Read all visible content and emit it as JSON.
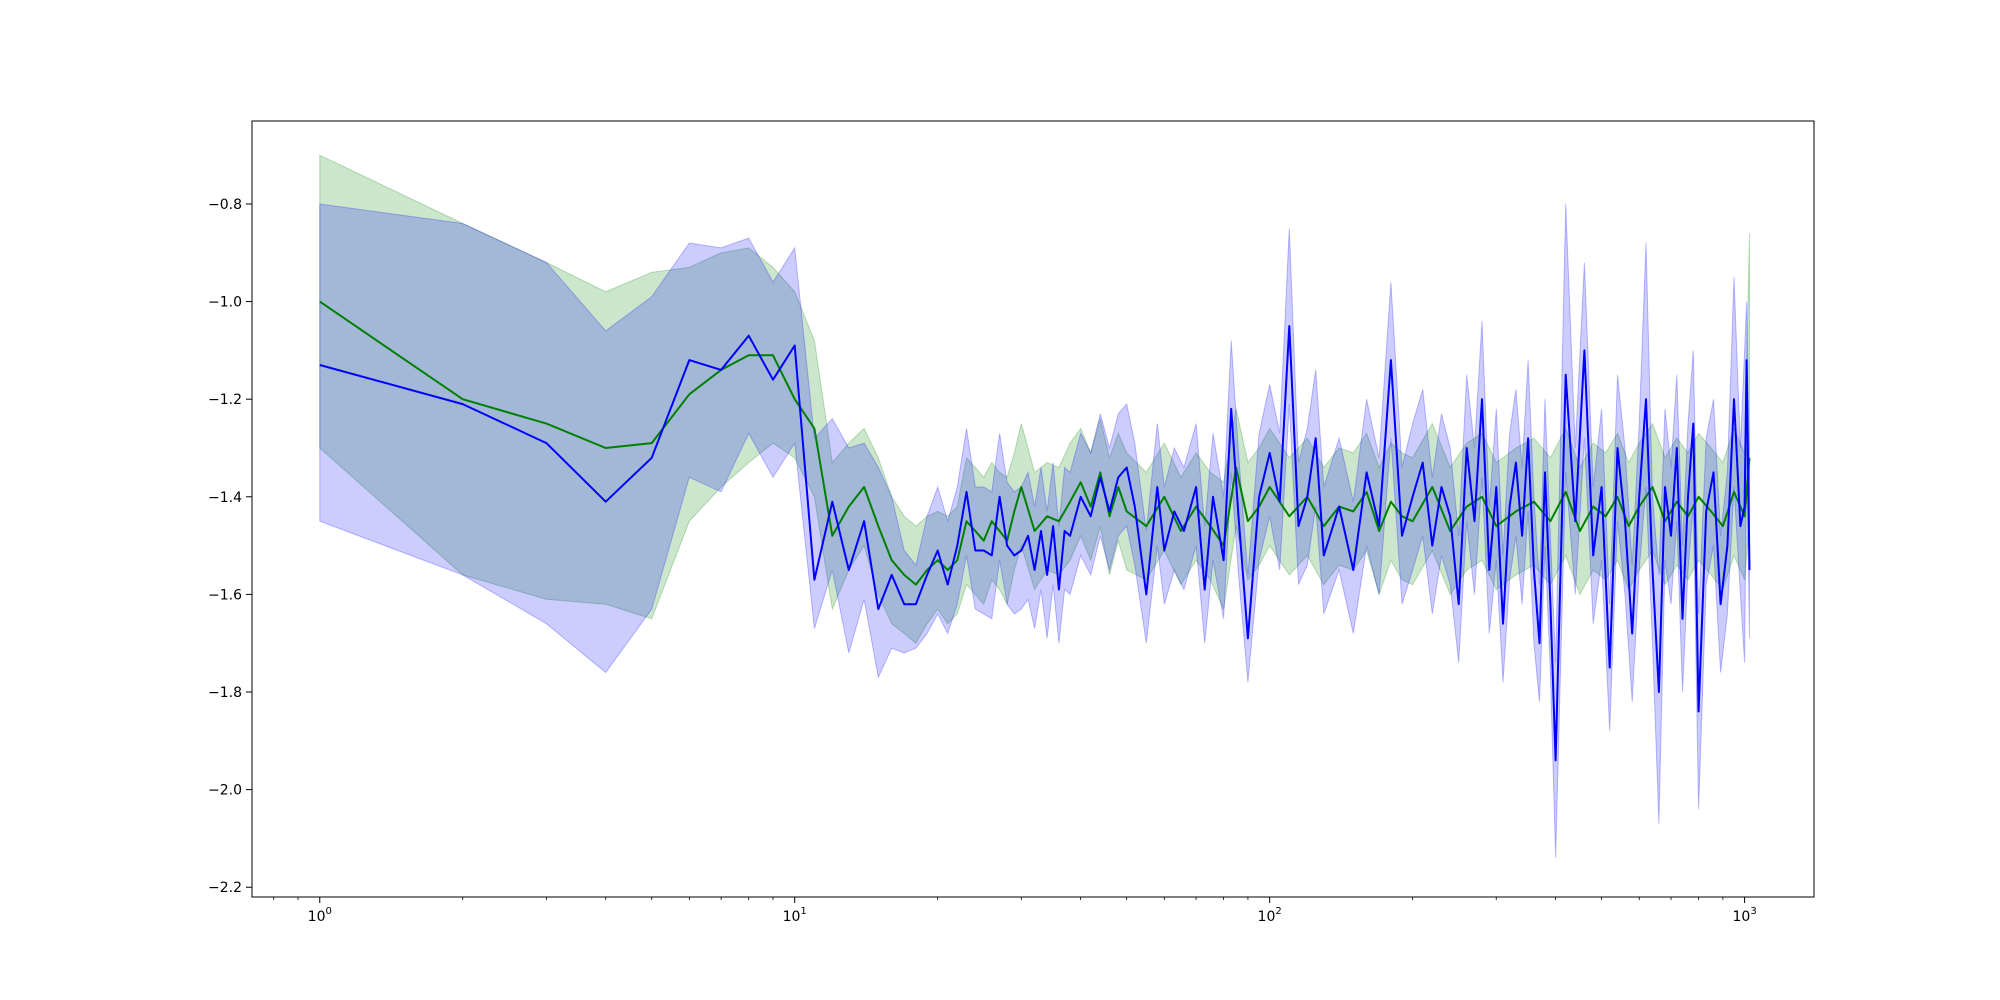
{
  "chart_data": {
    "type": "line",
    "title": "",
    "xlabel": "",
    "ylabel": "",
    "xscale": "log",
    "xlim": [
      0.72,
      1400
    ],
    "ylim": [
      -2.22,
      -0.63
    ],
    "grid": false,
    "legend": "none",
    "x_ticks": [
      {
        "base": "10",
        "exp": "0",
        "value": 1
      },
      {
        "base": "10",
        "exp": "1",
        "value": 10
      },
      {
        "base": "10",
        "exp": "2",
        "value": 100
      },
      {
        "base": "10",
        "exp": "3",
        "value": 1000
      }
    ],
    "y_ticks": [
      {
        "label": "−0.8",
        "value": -0.8
      },
      {
        "label": "−1.0",
        "value": -1.0
      },
      {
        "label": "−1.2",
        "value": -1.2
      },
      {
        "label": "−1.4",
        "value": -1.4
      },
      {
        "label": "−1.6",
        "value": -1.6
      },
      {
        "label": "−1.8",
        "value": -1.8
      },
      {
        "label": "−2.0",
        "value": -2.0
      },
      {
        "label": "−2.2",
        "value": -2.2
      }
    ],
    "series": [
      {
        "color": "#008000",
        "band_color": "#008000",
        "x": [
          1,
          2,
          3,
          4,
          5,
          6,
          7,
          8,
          9,
          10,
          11,
          12,
          13,
          14,
          15,
          16,
          17,
          18,
          19,
          20,
          21,
          22,
          23,
          24,
          25,
          26,
          27,
          28,
          29,
          30,
          32,
          34,
          36,
          38,
          40,
          42,
          44,
          46,
          48,
          50,
          55,
          60,
          65,
          70,
          75,
          80,
          85,
          90,
          95,
          100,
          110,
          120,
          130,
          140,
          150,
          160,
          170,
          180,
          190,
          200,
          220,
          240,
          260,
          280,
          300,
          330,
          360,
          390,
          420,
          450,
          480,
          510,
          540,
          570,
          600,
          640,
          680,
          720,
          760,
          800,
          850,
          900,
          950,
          1000,
          1024
        ],
        "y": [
          -1.0,
          -1.2,
          -1.25,
          -1.3,
          -1.29,
          -1.19,
          -1.14,
          -1.11,
          -1.11,
          -1.2,
          -1.26,
          -1.48,
          -1.42,
          -1.38,
          -1.46,
          -1.53,
          -1.56,
          -1.58,
          -1.55,
          -1.53,
          -1.55,
          -1.53,
          -1.45,
          -1.47,
          -1.49,
          -1.45,
          -1.47,
          -1.49,
          -1.43,
          -1.38,
          -1.47,
          -1.44,
          -1.45,
          -1.41,
          -1.37,
          -1.42,
          -1.35,
          -1.44,
          -1.38,
          -1.43,
          -1.46,
          -1.4,
          -1.47,
          -1.42,
          -1.46,
          -1.5,
          -1.34,
          -1.45,
          -1.42,
          -1.38,
          -1.44,
          -1.4,
          -1.46,
          -1.42,
          -1.43,
          -1.39,
          -1.47,
          -1.41,
          -1.44,
          -1.45,
          -1.38,
          -1.47,
          -1.42,
          -1.4,
          -1.46,
          -1.43,
          -1.41,
          -1.45,
          -1.39,
          -1.47,
          -1.42,
          -1.44,
          -1.4,
          -1.46,
          -1.42,
          -1.38,
          -1.45,
          -1.41,
          -1.44,
          -1.4,
          -1.43,
          -1.46,
          -1.39,
          -1.44,
          -1.32
        ],
        "lower": [
          -1.3,
          -1.56,
          -1.61,
          -1.62,
          -1.65,
          -1.45,
          -1.38,
          -1.33,
          -1.29,
          -1.32,
          -1.4,
          -1.63,
          -1.55,
          -1.5,
          -1.6,
          -1.66,
          -1.68,
          -1.7,
          -1.66,
          -1.63,
          -1.66,
          -1.64,
          -1.58,
          -1.6,
          -1.62,
          -1.57,
          -1.59,
          -1.62,
          -1.55,
          -1.5,
          -1.59,
          -1.55,
          -1.56,
          -1.53,
          -1.48,
          -1.53,
          -1.46,
          -1.56,
          -1.49,
          -1.55,
          -1.57,
          -1.51,
          -1.58,
          -1.53,
          -1.57,
          -1.63,
          -1.46,
          -1.57,
          -1.54,
          -1.5,
          -1.56,
          -1.52,
          -1.58,
          -1.54,
          -1.55,
          -1.51,
          -1.6,
          -1.53,
          -1.57,
          -1.58,
          -1.51,
          -1.6,
          -1.55,
          -1.53,
          -1.59,
          -1.56,
          -1.54,
          -1.58,
          -1.52,
          -1.6,
          -1.55,
          -1.57,
          -1.53,
          -1.59,
          -1.55,
          -1.51,
          -1.58,
          -1.54,
          -1.57,
          -1.53,
          -1.56,
          -1.59,
          -1.52,
          -1.57,
          -1.45
        ],
        "upper": [
          -0.7,
          -0.84,
          -0.92,
          -0.98,
          -0.94,
          -0.93,
          -0.9,
          -0.89,
          -0.93,
          -0.98,
          -1.08,
          -1.33,
          -1.29,
          -1.26,
          -1.32,
          -1.4,
          -1.44,
          -1.46,
          -1.44,
          -1.43,
          -1.44,
          -1.42,
          -1.32,
          -1.34,
          -1.36,
          -1.33,
          -1.35,
          -1.36,
          -1.31,
          -1.25,
          -1.35,
          -1.33,
          -1.34,
          -1.29,
          -1.26,
          -1.31,
          -1.24,
          -1.32,
          -1.27,
          -1.31,
          -1.35,
          -1.29,
          -1.36,
          -1.31,
          -1.35,
          -1.37,
          -1.22,
          -1.33,
          -1.3,
          -1.26,
          -1.32,
          -1.28,
          -1.34,
          -1.3,
          -1.31,
          -1.27,
          -1.34,
          -1.29,
          -1.31,
          -1.32,
          -1.25,
          -1.34,
          -1.29,
          -1.27,
          -1.33,
          -1.3,
          -1.28,
          -1.32,
          -1.26,
          -1.34,
          -1.29,
          -1.31,
          -1.27,
          -1.33,
          -1.29,
          -1.25,
          -1.32,
          -1.28,
          -1.31,
          -1.27,
          -1.3,
          -1.33,
          -1.26,
          -1.31,
          -0.86
        ]
      },
      {
        "color": "#0000ff",
        "band_color": "#0000ff",
        "x": [
          1,
          2,
          3,
          4,
          5,
          6,
          7,
          8,
          9,
          10,
          11,
          12,
          13,
          14,
          15,
          16,
          17,
          18,
          19,
          20,
          21,
          22,
          23,
          24,
          25,
          26,
          27,
          28,
          29,
          30,
          31,
          32,
          33,
          34,
          35,
          36,
          37,
          38,
          40,
          42,
          44,
          46,
          48,
          50,
          52,
          55,
          58,
          60,
          63,
          66,
          70,
          73,
          76,
          80,
          83,
          86,
          90,
          95,
          100,
          105,
          110,
          115,
          120,
          125,
          130,
          140,
          150,
          160,
          170,
          180,
          190,
          200,
          210,
          220,
          230,
          240,
          250,
          260,
          270,
          280,
          290,
          300,
          310,
          320,
          330,
          340,
          350,
          360,
          370,
          380,
          390,
          400,
          420,
          440,
          460,
          480,
          500,
          520,
          540,
          560,
          580,
          600,
          620,
          640,
          660,
          680,
          700,
          720,
          740,
          760,
          780,
          800,
          830,
          860,
          890,
          920,
          950,
          980,
          1000,
          1010,
          1024
        ],
        "y": [
          -1.13,
          -1.21,
          -1.29,
          -1.41,
          -1.32,
          -1.12,
          -1.14,
          -1.07,
          -1.16,
          -1.09,
          -1.57,
          -1.41,
          -1.55,
          -1.45,
          -1.63,
          -1.56,
          -1.62,
          -1.62,
          -1.56,
          -1.51,
          -1.58,
          -1.5,
          -1.39,
          -1.51,
          -1.51,
          -1.52,
          -1.4,
          -1.5,
          -1.52,
          -1.51,
          -1.48,
          -1.55,
          -1.47,
          -1.56,
          -1.46,
          -1.59,
          -1.47,
          -1.48,
          -1.4,
          -1.44,
          -1.36,
          -1.43,
          -1.36,
          -1.34,
          -1.42,
          -1.6,
          -1.38,
          -1.51,
          -1.43,
          -1.47,
          -1.38,
          -1.59,
          -1.4,
          -1.53,
          -1.22,
          -1.44,
          -1.69,
          -1.4,
          -1.31,
          -1.41,
          -1.05,
          -1.46,
          -1.4,
          -1.28,
          -1.52,
          -1.42,
          -1.55,
          -1.35,
          -1.46,
          -1.12,
          -1.48,
          -1.4,
          -1.33,
          -1.5,
          -1.38,
          -1.44,
          -1.62,
          -1.3,
          -1.45,
          -1.2,
          -1.55,
          -1.38,
          -1.66,
          -1.42,
          -1.33,
          -1.48,
          -1.28,
          -1.55,
          -1.7,
          -1.35,
          -1.62,
          -1.94,
          -1.15,
          -1.45,
          -1.1,
          -1.52,
          -1.38,
          -1.75,
          -1.3,
          -1.45,
          -1.68,
          -1.4,
          -1.2,
          -1.55,
          -1.8,
          -1.38,
          -1.48,
          -1.3,
          -1.65,
          -1.4,
          -1.25,
          -1.84,
          -1.43,
          -1.35,
          -1.62,
          -1.5,
          -1.2,
          -1.46,
          -1.42,
          -1.12,
          -1.55
        ],
        "lower": [
          -1.45,
          -1.56,
          -1.66,
          -1.76,
          -1.63,
          -1.36,
          -1.39,
          -1.27,
          -1.36,
          -1.29,
          -1.67,
          -1.55,
          -1.72,
          -1.61,
          -1.77,
          -1.71,
          -1.72,
          -1.71,
          -1.68,
          -1.64,
          -1.68,
          -1.62,
          -1.52,
          -1.63,
          -1.64,
          -1.65,
          -1.53,
          -1.62,
          -1.64,
          -1.63,
          -1.61,
          -1.67,
          -1.59,
          -1.69,
          -1.58,
          -1.7,
          -1.59,
          -1.6,
          -1.52,
          -1.56,
          -1.48,
          -1.55,
          -1.48,
          -1.46,
          -1.54,
          -1.7,
          -1.5,
          -1.62,
          -1.55,
          -1.59,
          -1.5,
          -1.7,
          -1.53,
          -1.65,
          -1.35,
          -1.56,
          -1.78,
          -1.53,
          -1.44,
          -1.55,
          -1.21,
          -1.58,
          -1.54,
          -1.42,
          -1.64,
          -1.55,
          -1.68,
          -1.5,
          -1.6,
          -1.28,
          -1.62,
          -1.55,
          -1.48,
          -1.64,
          -1.52,
          -1.58,
          -1.74,
          -1.45,
          -1.6,
          -1.36,
          -1.68,
          -1.53,
          -1.78,
          -1.57,
          -1.48,
          -1.62,
          -1.43,
          -1.7,
          -1.82,
          -1.5,
          -1.76,
          -2.14,
          -1.35,
          -1.6,
          -1.28,
          -1.66,
          -1.53,
          -1.88,
          -1.45,
          -1.6,
          -1.82,
          -1.55,
          -1.38,
          -1.7,
          -2.07,
          -1.53,
          -1.62,
          -1.45,
          -1.8,
          -1.55,
          -1.42,
          -2.04,
          -1.58,
          -1.5,
          -1.76,
          -1.64,
          -1.38,
          -1.6,
          -1.74,
          -1.3,
          -1.69
        ],
        "upper": [
          -0.8,
          -0.84,
          -0.92,
          -1.06,
          -0.99,
          -0.88,
          -0.89,
          -0.87,
          -0.96,
          -0.89,
          -1.28,
          -1.24,
          -1.3,
          -1.29,
          -1.34,
          -1.4,
          -1.51,
          -1.54,
          -1.44,
          -1.38,
          -1.45,
          -1.38,
          -1.26,
          -1.38,
          -1.38,
          -1.39,
          -1.27,
          -1.37,
          -1.39,
          -1.38,
          -1.35,
          -1.42,
          -1.34,
          -1.43,
          -1.33,
          -1.46,
          -1.34,
          -1.35,
          -1.27,
          -1.31,
          -1.23,
          -1.3,
          -1.23,
          -1.21,
          -1.29,
          -1.47,
          -1.25,
          -1.38,
          -1.3,
          -1.34,
          -1.25,
          -1.46,
          -1.27,
          -1.4,
          -1.08,
          -1.31,
          -1.56,
          -1.27,
          -1.17,
          -1.27,
          -0.85,
          -1.33,
          -1.26,
          -1.14,
          -1.38,
          -1.28,
          -1.41,
          -1.2,
          -1.32,
          -0.96,
          -1.34,
          -1.25,
          -1.18,
          -1.36,
          -1.23,
          -1.3,
          -1.48,
          -1.15,
          -1.3,
          -1.04,
          -1.42,
          -1.22,
          -1.52,
          -1.27,
          -1.18,
          -1.34,
          -1.12,
          -1.4,
          -1.58,
          -1.2,
          -1.48,
          -1.74,
          -0.8,
          -1.3,
          -0.92,
          -1.38,
          -1.22,
          -1.62,
          -1.15,
          -1.3,
          -1.54,
          -1.25,
          -0.88,
          -1.4,
          -1.56,
          -1.22,
          -1.34,
          -1.15,
          -1.5,
          -1.25,
          -1.1,
          -1.64,
          -1.28,
          -1.2,
          -1.48,
          -1.35,
          -0.95,
          -1.3,
          -1.1,
          -1.0,
          -1.36
        ]
      }
    ]
  }
}
